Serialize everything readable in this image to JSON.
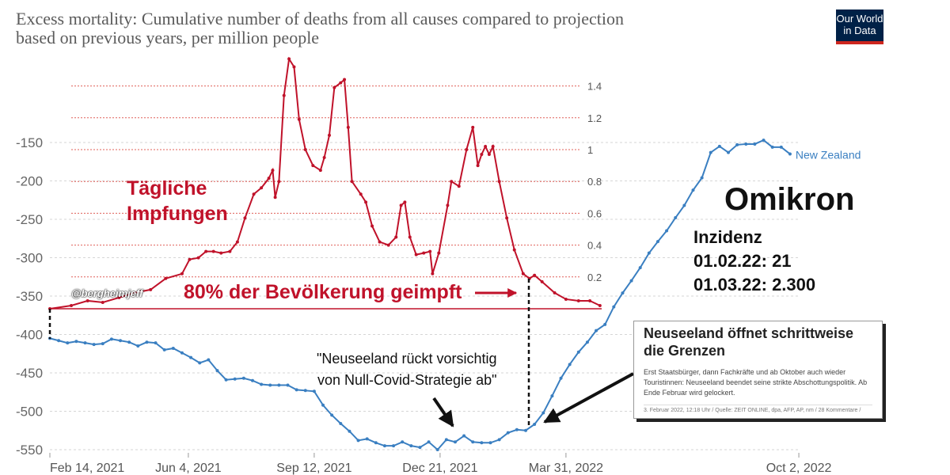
{
  "header": {
    "title_line1": "Excess mortality: Cumulative number of deaths from all causes compared to projection",
    "title_line2": "based on previous years, per million people",
    "logo_line1": "Our World",
    "logo_line2": "in Data"
  },
  "annotations": {
    "vacc_label_1": "Tägliche",
    "vacc_label_2": "Impfungen",
    "handle": "@bergheimjeff",
    "eighty_percent": "80% der Bevölkerung geimpft",
    "quote_1": "\"Neuseeland rückt vorsichtig",
    "quote_2": "von Null-Covid-Strategie ab\"",
    "omikron": "Omikron",
    "inzidenz": "Inzidenz",
    "inz_1": "01.02.22: 21",
    "inz_2": "01.03.22: 2.300"
  },
  "news": {
    "headline": "Neuseeland öffnet schrittweise die Grenzen",
    "body": "Erst Staatsbürger, dann Fachkräfte und ab Oktober auch wieder Touristinnen: Neuseeland beendet seine strikte Abschottungspolitik. Ab Ende Februar wird gelockert.",
    "meta": "3. Februar 2022, 12:18 Uhr / Quelle: ZEIT ONLINE, dpa, AFP, AP, nm / 28 Kommentare /"
  },
  "colors": {
    "blue": "#3a7fc1",
    "red": "#c0122a",
    "grid": "#d6d6d6"
  },
  "chart_data": {
    "type": "line",
    "title": "Excess mortality: Cumulative number of deaths from all causes compared to projection based on previous years, per million people",
    "x_unit": "days since Feb 14, 2021",
    "xticks": [
      {
        "day": 0,
        "label": "Feb 14, 2021"
      },
      {
        "day": 110,
        "label": "Jun 4, 2021"
      },
      {
        "day": 210,
        "label": "Sep 12, 2021"
      },
      {
        "day": 310,
        "label": "Dec 21, 2021"
      },
      {
        "day": 410,
        "label": "Mar 31, 2022"
      },
      {
        "day": 595,
        "label": "Oct 2, 2022"
      }
    ],
    "xlim": [
      0,
      600
    ],
    "left_axis": {
      "ylim": [
        -560,
        -130
      ],
      "ticks": [
        "-150",
        "-200",
        "-250",
        "-300",
        "-350",
        "-400",
        "-450",
        "-500",
        "-550"
      ]
    },
    "right_axis": {
      "ylim": [
        0,
        1.5
      ],
      "ticks": [
        "0.2",
        "0.4",
        "0.6",
        "0.8",
        "1",
        "1.2",
        "1.4"
      ]
    },
    "series": [
      {
        "name": "New Zealand",
        "axis": "left",
        "step_days": 7,
        "values": [
          -405,
          -408,
          -411,
          -409,
          -411,
          -413,
          -412,
          -406,
          -408,
          -410,
          -415,
          -410,
          -411,
          -420,
          -418,
          -424,
          -430,
          -437,
          -433,
          -447,
          -459,
          -458,
          -457,
          -460,
          -465,
          -466,
          -466,
          -466,
          -472,
          -473,
          -474,
          -492,
          -505,
          -516,
          -526,
          -538,
          -536,
          -541,
          -545,
          -545,
          -540,
          -545,
          -547,
          -540,
          -550,
          -537,
          -540,
          -532,
          -540,
          -541,
          -541,
          -537,
          -528,
          -524,
          -525,
          -517,
          -502,
          -480,
          -457,
          -439,
          -423,
          -410,
          -395,
          -387,
          -364,
          -346,
          -330,
          -313,
          -294,
          -279,
          -265,
          -248,
          -232,
          -212,
          -196,
          -163,
          -155,
          -163,
          -153,
          -152,
          -152,
          -147,
          -156,
          -156,
          -165
        ]
      },
      {
        "name": "Tägliche Impfungen",
        "axis": "right",
        "points": [
          [
            0,
            0
          ],
          [
            17,
            0.02
          ],
          [
            30,
            0.05
          ],
          [
            42,
            0.04
          ],
          [
            55,
            0.07
          ],
          [
            67,
            0.1
          ],
          [
            80,
            0.12
          ],
          [
            92,
            0.19
          ],
          [
            105,
            0.22
          ],
          [
            111,
            0.31
          ],
          [
            118,
            0.32
          ],
          [
            124,
            0.36
          ],
          [
            130,
            0.36
          ],
          [
            136,
            0.35
          ],
          [
            143,
            0.36
          ],
          [
            149,
            0.42
          ],
          [
            155,
            0.57
          ],
          [
            162,
            0.72
          ],
          [
            168,
            0.76
          ],
          [
            174,
            0.82
          ],
          [
            177,
            0.87
          ],
          [
            179,
            0.7
          ],
          [
            182,
            0.8
          ],
          [
            186,
            1.34
          ],
          [
            190,
            1.57
          ],
          [
            194,
            1.52
          ],
          [
            198,
            1.19
          ],
          [
            203,
            1.0
          ],
          [
            209,
            0.9
          ],
          [
            215,
            0.87
          ],
          [
            218,
            0.95
          ],
          [
            222,
            1.09
          ],
          [
            226,
            1.39
          ],
          [
            231,
            1.42
          ],
          [
            234,
            1.44
          ],
          [
            237,
            1.14
          ],
          [
            240,
            0.8
          ],
          [
            247,
            0.72
          ],
          [
            251,
            0.67
          ],
          [
            256,
            0.52
          ],
          [
            262,
            0.42
          ],
          [
            269,
            0.4
          ],
          [
            275,
            0.45
          ],
          [
            279,
            0.65
          ],
          [
            282,
            0.67
          ],
          [
            286,
            0.45
          ],
          [
            291,
            0.34
          ],
          [
            297,
            0.35
          ],
          [
            302,
            0.36
          ],
          [
            304,
            0.22
          ],
          [
            309,
            0.35
          ],
          [
            316,
            0.65
          ],
          [
            319,
            0.8
          ],
          [
            325,
            0.77
          ],
          [
            331,
            1.0
          ],
          [
            336,
            1.14
          ],
          [
            340,
            0.9
          ],
          [
            343,
            0.97
          ],
          [
            346,
            1.02
          ],
          [
            349,
            0.97
          ],
          [
            352,
            1.02
          ],
          [
            357,
            0.8
          ],
          [
            363,
            0.57
          ],
          [
            369,
            0.37
          ],
          [
            376,
            0.22
          ],
          [
            381,
            0.19
          ],
          [
            385,
            0.21
          ],
          [
            391,
            0.17
          ],
          [
            401,
            0.1
          ],
          [
            410,
            0.06
          ],
          [
            420,
            0.05
          ],
          [
            429,
            0.05
          ],
          [
            437,
            0.02
          ]
        ]
      }
    ]
  }
}
